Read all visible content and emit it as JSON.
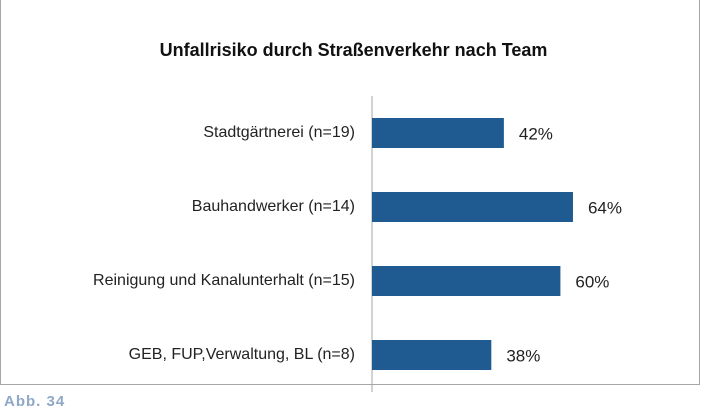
{
  "chart_data": {
    "type": "bar",
    "orientation": "horizontal",
    "title": "Unfallrisiko durch Straßenverkehr nach Team",
    "categories": [
      "Stadtgärtnerei (n=19)",
      "Bauhandwerker (n=14)",
      "Reinigung und Kanalunterhalt (n=15)",
      "GEB, FUP,Verwaltung, BL (n=8)"
    ],
    "values": [
      42,
      64,
      60,
      38
    ],
    "value_labels": [
      "42%",
      "64%",
      "60%",
      "38%"
    ],
    "color": "#1f5a91",
    "xlim": [
      0,
      100
    ]
  },
  "figure_label": "Abb. 34"
}
